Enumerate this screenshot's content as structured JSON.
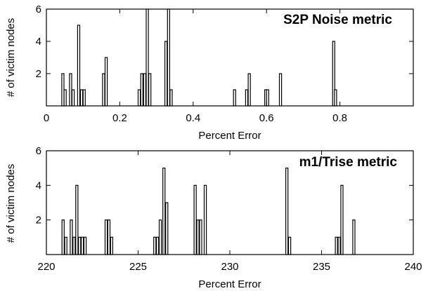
{
  "chart_data": [
    {
      "type": "bar",
      "title": "S2P Noise metric",
      "xlabel": "Percent Error",
      "ylabel": "# of victim nodes",
      "xlim": [
        0,
        1.0
      ],
      "ylim": [
        0,
        6
      ],
      "xticks": [
        0,
        0.2,
        0.4,
        0.6,
        0.8
      ],
      "xtick_labels": [
        "0",
        "0.2",
        "0.4",
        "0.6",
        "0.8"
      ],
      "yticks": [
        2,
        4,
        6
      ],
      "ytick_labels": [
        "2",
        "4",
        "6"
      ],
      "bin_width": 0.006,
      "x": [
        0.042,
        0.048,
        0.063,
        0.07,
        0.085,
        0.093,
        0.1,
        0.153,
        0.16,
        0.25,
        0.257,
        0.265,
        0.272,
        0.279,
        0.323,
        0.33,
        0.337,
        0.51,
        0.543,
        0.55,
        0.595,
        0.6,
        0.635,
        0.78,
        0.785
      ],
      "values": [
        2,
        1,
        2,
        1,
        5,
        1,
        1,
        2,
        3,
        1,
        2,
        2,
        6,
        2,
        4,
        6,
        1,
        1,
        1,
        2,
        1,
        1,
        2,
        4,
        1
      ]
    },
    {
      "type": "bar",
      "title": "m1/Trise metric",
      "xlabel": "Percent Error",
      "ylabel": "# of victim nodes",
      "xlim": [
        220,
        240
      ],
      "ylim": [
        0,
        6
      ],
      "xticks": [
        220,
        225,
        230,
        235,
        240
      ],
      "xtick_labels": [
        "220",
        "225",
        "230",
        "235",
        "240"
      ],
      "yticks": [
        2,
        4,
        6
      ],
      "ytick_labels": [
        "2",
        "4",
        "6"
      ],
      "bin_width": 0.12,
      "x": [
        220.85,
        221.0,
        221.3,
        221.45,
        221.6,
        221.75,
        221.9,
        222.05,
        223.2,
        223.35,
        223.5,
        225.85,
        226.0,
        226.15,
        226.35,
        226.5,
        228.05,
        228.2,
        228.35,
        228.6,
        233.05,
        233.2,
        235.75,
        235.9,
        236.05,
        236.7
      ],
      "values": [
        2,
        1,
        2,
        1,
        4,
        1,
        1,
        1,
        2,
        2,
        1,
        1,
        1,
        2,
        5,
        3,
        4,
        2,
        2,
        4,
        5,
        1,
        1,
        1,
        4,
        2
      ]
    }
  ]
}
